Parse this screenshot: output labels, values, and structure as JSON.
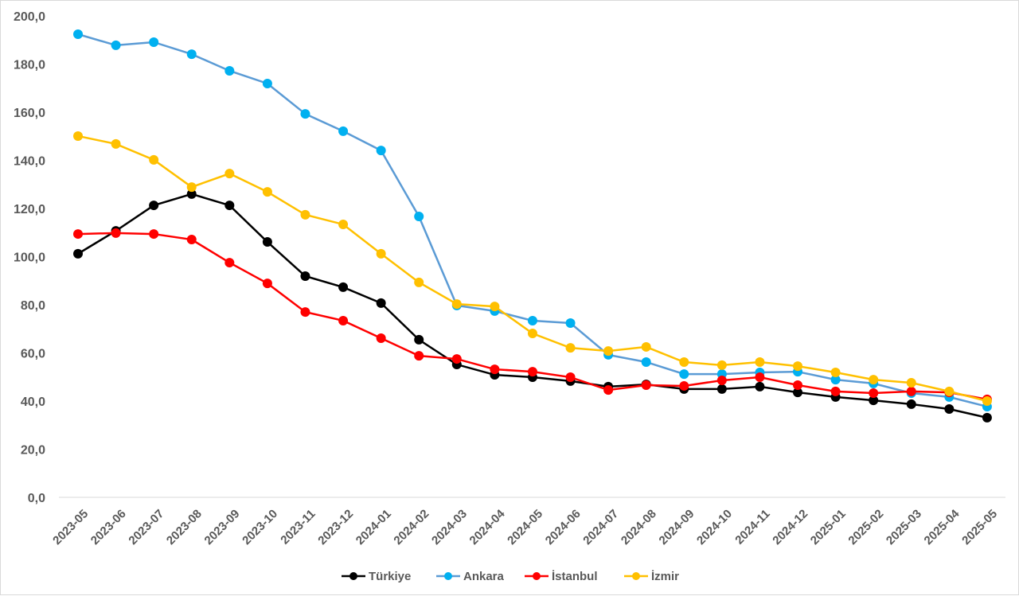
{
  "chart_data": {
    "type": "line",
    "title": "",
    "xlabel": "",
    "ylabel": "",
    "ylim": [
      0,
      200
    ],
    "yticks": [
      "0,0",
      "20,0",
      "40,0",
      "60,0",
      "80,0",
      "100,0",
      "120,0",
      "140,0",
      "160,0",
      "180,0",
      "200,0"
    ],
    "grid": false,
    "legend_position": "bottom",
    "categories": [
      "2023-05",
      "2023-06",
      "2023-07",
      "2023-08",
      "2023-09",
      "2023-10",
      "2023-11",
      "2023-12",
      "2024-01",
      "2024-02",
      "2024-03",
      "2024-04",
      "2024-05",
      "2024-06",
      "2024-07",
      "2024-08",
      "2024-09",
      "2024-10",
      "2024-11",
      "2024-12",
      "2025-01",
      "2025-02",
      "2025-03",
      "2025-04",
      "2025-05"
    ],
    "series": [
      {
        "name": "Türkiye",
        "line_color": "#000000",
        "marker_color": "#000000",
        "values": [
          101.2,
          110.7,
          121.3,
          126.0,
          121.3,
          106.1,
          91.9,
          87.3,
          80.7,
          65.5,
          55.2,
          50.9,
          49.9,
          48.3,
          46.0,
          46.9,
          45.0,
          45.0,
          46.0,
          43.6,
          41.7,
          40.3,
          38.7,
          36.7,
          33.1
        ]
      },
      {
        "name": "Ankara",
        "line_color": "#5B9BD5",
        "marker_color": "#00B0F0",
        "values": [
          192.4,
          187.8,
          189.1,
          184.1,
          177.2,
          171.9,
          159.3,
          152.1,
          144.1,
          116.7,
          79.7,
          77.4,
          73.4,
          72.4,
          59.2,
          56.2,
          51.2,
          51.2,
          51.9,
          52.2,
          48.9,
          47.3,
          43.3,
          41.7,
          37.7
        ]
      },
      {
        "name": "İstanbul",
        "line_color": "#FF0000",
        "marker_color": "#FF0000",
        "values": [
          109.4,
          109.8,
          109.4,
          107.1,
          97.5,
          88.9,
          77.0,
          73.4,
          66.1,
          58.8,
          57.5,
          53.2,
          52.2,
          49.9,
          44.6,
          46.6,
          46.3,
          48.6,
          49.9,
          46.6,
          44.0,
          43.3,
          44.0,
          43.6,
          40.7
        ]
      },
      {
        "name": "İzmir",
        "line_color": "#FFC000",
        "marker_color": "#FFC000",
        "values": [
          150.1,
          146.8,
          140.2,
          128.9,
          134.5,
          126.9,
          117.4,
          113.4,
          101.2,
          89.3,
          80.3,
          79.3,
          68.1,
          62.1,
          60.8,
          62.5,
          56.2,
          54.9,
          56.2,
          54.5,
          51.9,
          48.9,
          47.6,
          44.0,
          40.0
        ]
      }
    ]
  }
}
